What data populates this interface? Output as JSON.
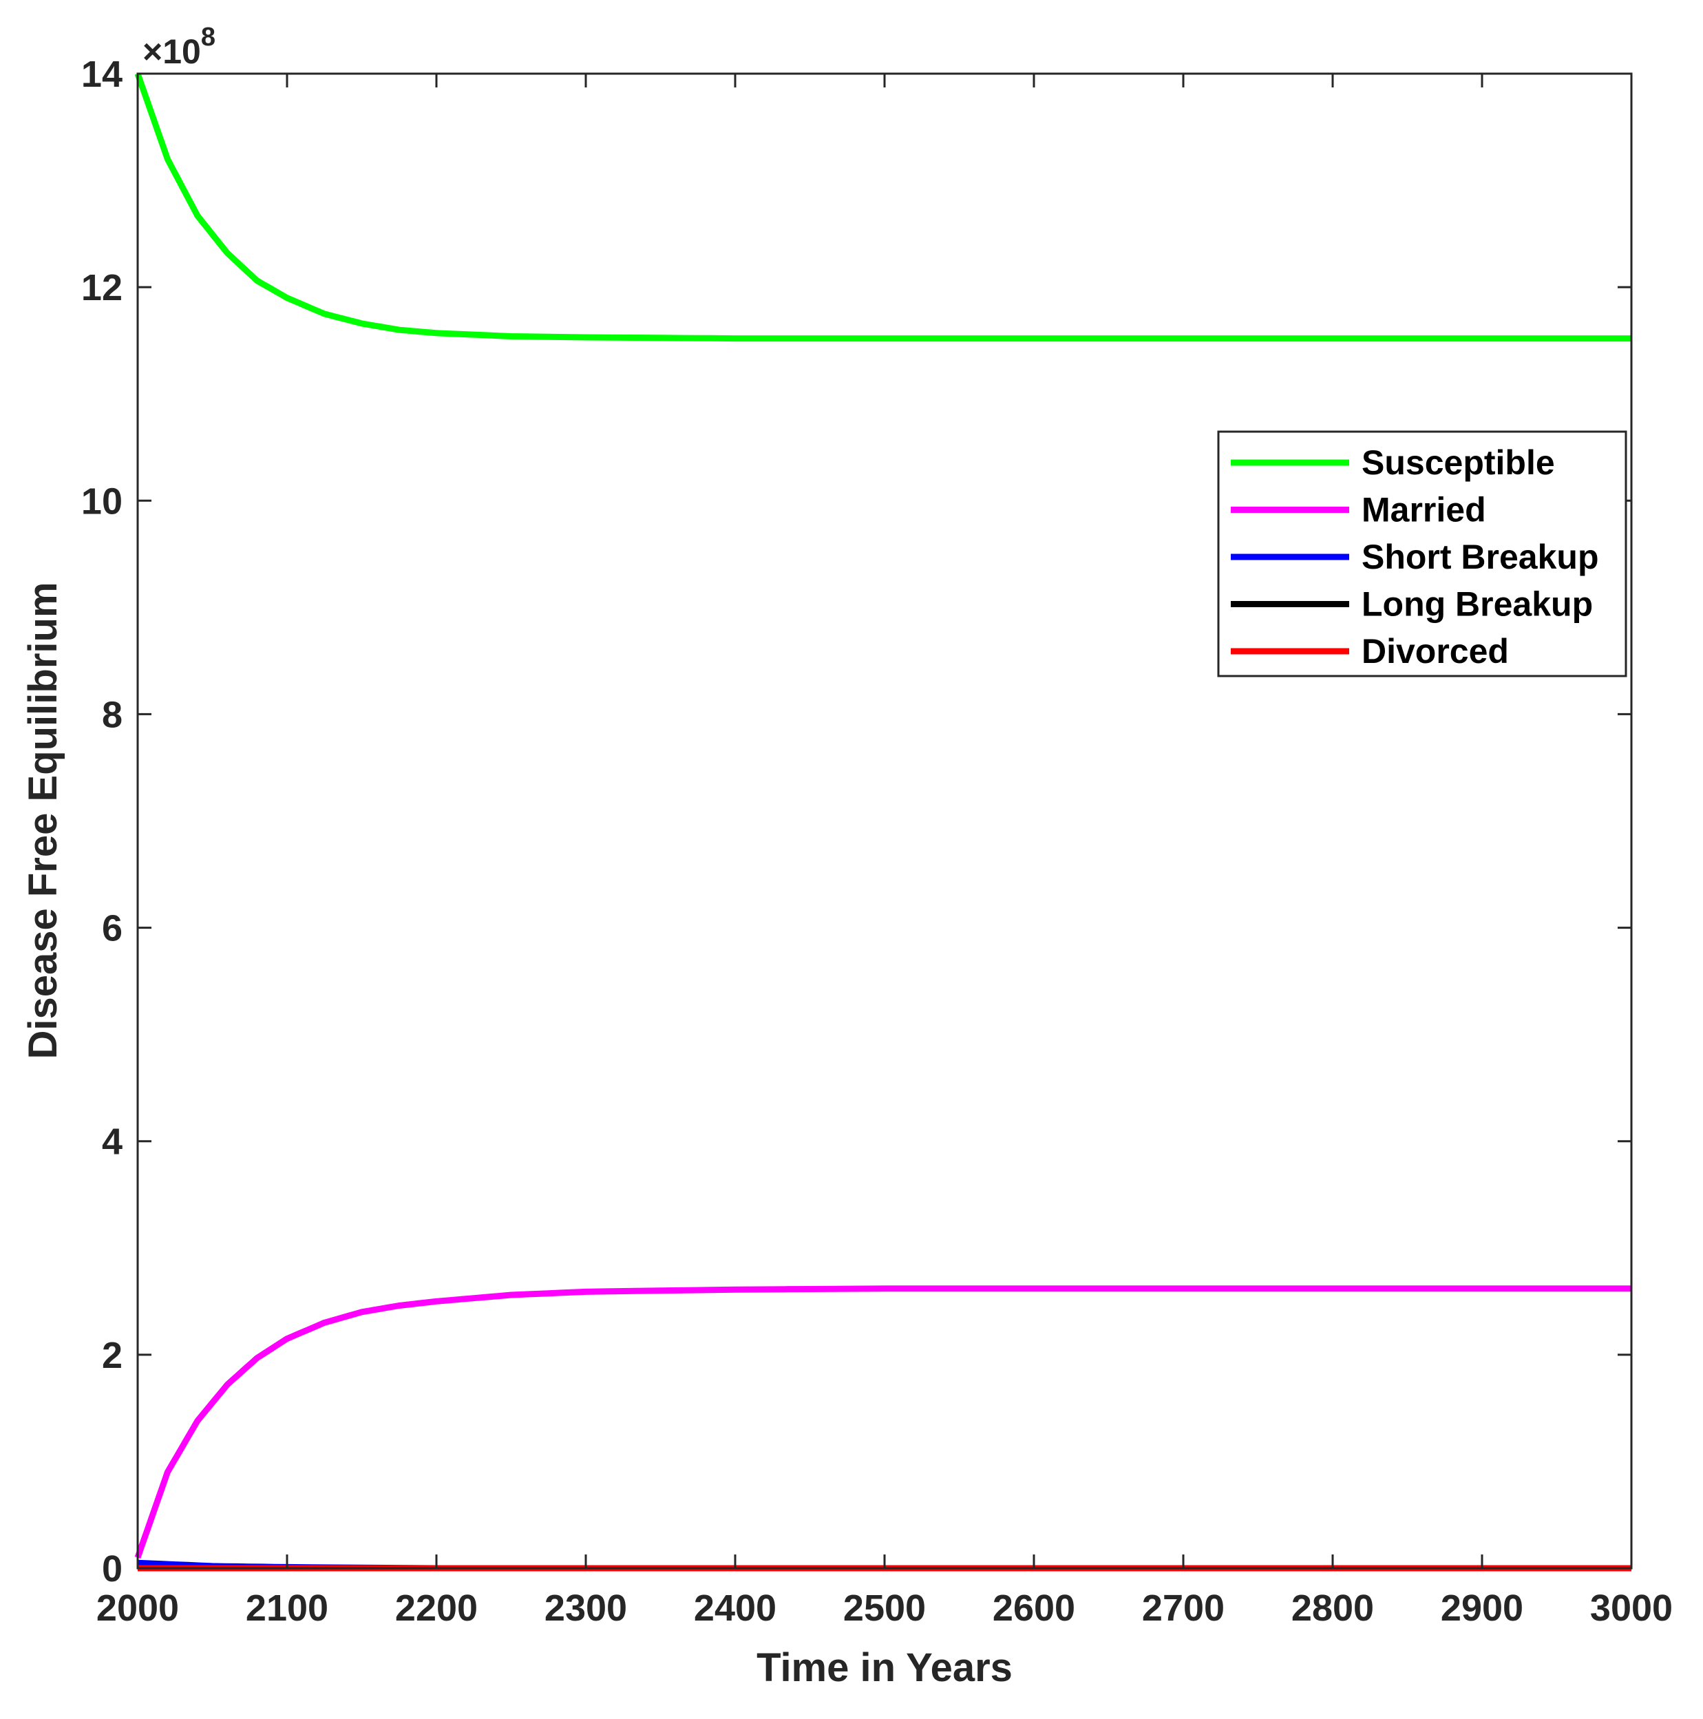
{
  "chart_data": {
    "type": "line",
    "xlabel": "Time in Years",
    "ylabel": "Disease Free Equilibrium",
    "xlim": [
      2000,
      3000
    ],
    "ylim": [
      0,
      14
    ],
    "y_multiplier_base": "×10",
    "y_multiplier_exp": "8",
    "xticks": [
      2000,
      2100,
      2200,
      2300,
      2400,
      2500,
      2600,
      2700,
      2800,
      2900,
      3000
    ],
    "yticks": [
      0,
      2,
      4,
      6,
      8,
      10,
      12,
      14
    ],
    "grid": false,
    "legend_position": "top-right",
    "series": [
      {
        "name": "Susceptible",
        "color": "#00ff00",
        "x": [
          2000,
          2020,
          2040,
          2060,
          2080,
          2100,
          2125,
          2150,
          2175,
          2200,
          2250,
          2300,
          2400,
          2500,
          3000
        ],
        "y": [
          14.0,
          13.2,
          12.67,
          12.32,
          12.06,
          11.9,
          11.75,
          11.66,
          11.6,
          11.57,
          11.54,
          11.53,
          11.52,
          11.52,
          11.52
        ]
      },
      {
        "name": "Married",
        "color": "#ff00ff",
        "x": [
          2000,
          2020,
          2040,
          2060,
          2080,
          2100,
          2125,
          2150,
          2175,
          2200,
          2250,
          2300,
          2400,
          2500,
          3000
        ],
        "y": [
          0.1,
          0.9,
          1.38,
          1.72,
          1.97,
          2.15,
          2.3,
          2.4,
          2.46,
          2.5,
          2.56,
          2.59,
          2.61,
          2.62,
          2.62
        ]
      },
      {
        "name": "Short Breakup",
        "color": "#0000ff",
        "x": [
          2000,
          2050,
          2100,
          2200,
          3000
        ],
        "y": [
          0.05,
          0.02,
          0.01,
          0.0,
          0.0
        ]
      },
      {
        "name": "Long Breakup",
        "color": "#000000",
        "x": [
          2000,
          3000
        ],
        "y": [
          0.0,
          0.0
        ]
      },
      {
        "name": "Divorced",
        "color": "#ff0000",
        "x": [
          2000,
          3000
        ],
        "y": [
          0.0,
          0.0
        ]
      }
    ]
  }
}
